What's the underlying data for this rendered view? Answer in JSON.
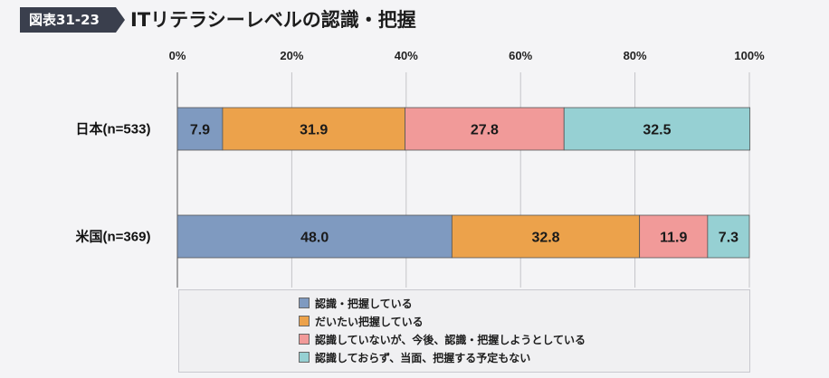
{
  "figure": {
    "badge": "図表31-23",
    "title": "ITリテラシーレベルの認識・把握"
  },
  "chart_data": {
    "type": "bar",
    "orientation": "horizontal",
    "stacked": true,
    "percent_scale": true,
    "xlim": [
      0,
      100
    ],
    "x_ticks": [
      "0%",
      "20%",
      "40%",
      "60%",
      "80%",
      "100%"
    ],
    "categories": [
      "日本(n=533)",
      "米国(n=369)"
    ],
    "series": [
      {
        "name": "認識・把握している",
        "color": "#7f9ac0",
        "values": [
          7.9,
          48.0
        ]
      },
      {
        "name": "だいたい把握している",
        "color": "#eca24b",
        "values": [
          31.9,
          32.8
        ]
      },
      {
        "name": "認識していないが、今後、認識・把握しようとしている",
        "color": "#f19a99",
        "values": [
          27.8,
          11.9
        ]
      },
      {
        "name": "認識しておらず、当面、把握する予定もない",
        "color": "#96d0d3",
        "values": [
          32.5,
          7.3
        ]
      }
    ],
    "data_labels": [
      [
        "7.9",
        "31.9",
        "27.8",
        "32.5"
      ],
      [
        "48.0",
        "32.8",
        "11.9",
        "7.3"
      ]
    ],
    "grid": true,
    "legend_position": "bottom"
  }
}
